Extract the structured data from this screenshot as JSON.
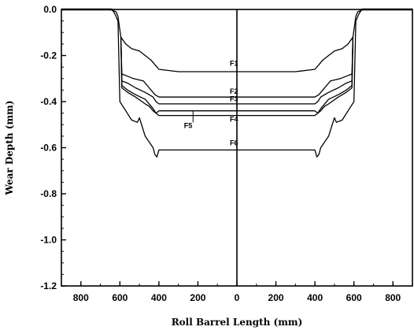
{
  "chart_data": {
    "type": "line",
    "xlabel": "Roll Barrel Length (mm)",
    "ylabel": "Wear Depth (mm)",
    "xlim": [
      -900,
      900
    ],
    "ylim": [
      -1.2,
      0.0
    ],
    "x_tick_labels": [
      "800",
      "600",
      "400",
      "200",
      "0",
      "200",
      "400",
      "600",
      "800"
    ],
    "x_tick_values": [
      -800,
      -600,
      -400,
      -200,
      0,
      200,
      400,
      600,
      800
    ],
    "y_tick_labels": [
      "0.0",
      "-0.2",
      "-0.4",
      "-0.6",
      "-0.8",
      "-1.0",
      "-1.2"
    ],
    "y_tick_values": [
      0.0,
      -0.2,
      -0.4,
      -0.6,
      -0.8,
      -1.0,
      -1.2
    ],
    "series": [
      {
        "name": "F1",
        "x": [
          -900,
          -650,
          -620,
          -610,
          -600,
          -595,
          -570,
          -540,
          -500,
          -470,
          -440,
          -420,
          -400,
          -300,
          0,
          300,
          400,
          420,
          440,
          470,
          500,
          540,
          570,
          595,
          600,
          610,
          620,
          650,
          900
        ],
        "y": [
          0,
          0,
          -0.01,
          -0.03,
          -0.09,
          -0.12,
          -0.15,
          -0.17,
          -0.18,
          -0.2,
          -0.22,
          -0.24,
          -0.26,
          -0.27,
          -0.27,
          -0.27,
          -0.26,
          -0.24,
          -0.22,
          -0.2,
          -0.18,
          -0.17,
          -0.15,
          -0.12,
          -0.09,
          -0.03,
          -0.01,
          0,
          0
        ]
      },
      {
        "name": "F2",
        "x": [
          -595,
          -590,
          -560,
          -530,
          -480,
          -460,
          -440,
          -420,
          -400,
          -300,
          0,
          300,
          400,
          420,
          440,
          460,
          480,
          530,
          560,
          590,
          595
        ],
        "y": [
          -0.12,
          -0.28,
          -0.29,
          -0.3,
          -0.31,
          -0.33,
          -0.35,
          -0.37,
          -0.38,
          -0.38,
          -0.38,
          -0.38,
          -0.38,
          -0.37,
          -0.35,
          -0.33,
          -0.31,
          -0.3,
          -0.29,
          -0.28,
          -0.12
        ]
      },
      {
        "name": "F3",
        "x": [
          -595,
          -590,
          -560,
          -520,
          -470,
          -450,
          -430,
          -415,
          -400,
          0,
          400,
          415,
          430,
          450,
          470,
          520,
          560,
          590,
          595
        ],
        "y": [
          -0.12,
          -0.31,
          -0.32,
          -0.34,
          -0.36,
          -0.37,
          -0.38,
          -0.4,
          -0.41,
          -0.41,
          -0.41,
          -0.4,
          -0.38,
          -0.37,
          -0.36,
          -0.34,
          -0.32,
          -0.31,
          -0.12
        ]
      },
      {
        "name": "F4",
        "x": [
          -595,
          -590,
          -560,
          -520,
          -470,
          -450,
          -430,
          -415,
          -400,
          0,
          400,
          415,
          430,
          450,
          470,
          520,
          560,
          590,
          595
        ],
        "y": [
          -0.12,
          -0.33,
          -0.35,
          -0.37,
          -0.39,
          -0.41,
          -0.43,
          -0.45,
          -0.46,
          -0.46,
          -0.46,
          -0.45,
          -0.43,
          -0.41,
          -0.39,
          -0.37,
          -0.35,
          -0.33,
          -0.12
        ]
      },
      {
        "name": "F5",
        "x": [
          -595,
          -590,
          -560,
          -520,
          -470,
          -450,
          -430,
          -415,
          -400,
          0,
          400,
          415,
          430,
          450,
          470,
          520,
          560,
          590,
          595
        ],
        "y": [
          -0.12,
          -0.34,
          -0.36,
          -0.38,
          -0.41,
          -0.42,
          -0.44,
          -0.45,
          -0.44,
          -0.44,
          -0.44,
          -0.45,
          -0.44,
          -0.42,
          -0.41,
          -0.38,
          -0.36,
          -0.34,
          -0.12
        ]
      },
      {
        "name": "F6",
        "x": [
          -640,
          -625,
          -610,
          -600,
          -570,
          -540,
          -510,
          -500,
          -470,
          -430,
          -420,
          -410,
          -400,
          0,
          400,
          410,
          420,
          430,
          470,
          500,
          510,
          540,
          570,
          600,
          610,
          625,
          640
        ],
        "y": [
          0,
          -0.02,
          -0.05,
          -0.4,
          -0.44,
          -0.48,
          -0.49,
          -0.47,
          -0.55,
          -0.6,
          -0.63,
          -0.64,
          -0.61,
          -0.61,
          -0.61,
          -0.64,
          -0.63,
          -0.6,
          -0.55,
          -0.47,
          -0.49,
          -0.48,
          -0.44,
          -0.4,
          -0.05,
          -0.02,
          0
        ]
      }
    ],
    "series_label_positions": [
      {
        "name": "F1",
        "x": -15,
        "y": -0.245
      },
      {
        "name": "F2",
        "x": -15,
        "y": -0.365
      },
      {
        "name": "F3",
        "x": -15,
        "y": -0.398
      },
      {
        "name": "F4",
        "x": -15,
        "y": -0.488
      },
      {
        "name": "F5",
        "x": -250,
        "y": -0.515
      },
      {
        "name": "F6",
        "x": -15,
        "y": -0.59
      }
    ],
    "grid": false,
    "center_line_x": 0
  }
}
